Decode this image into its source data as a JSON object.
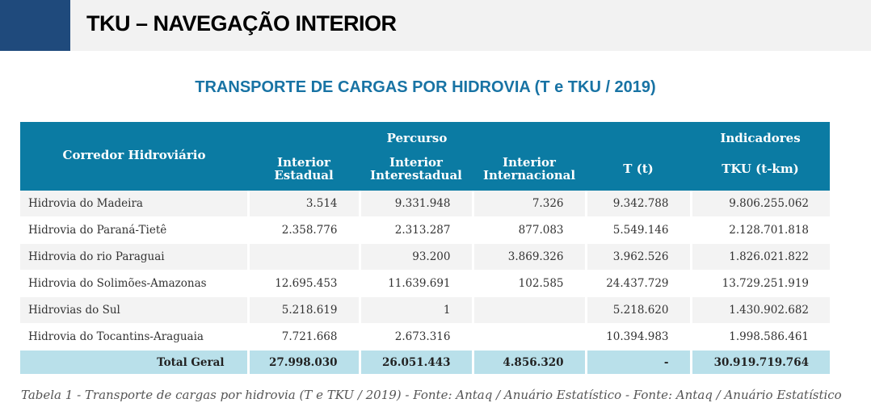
{
  "header": {
    "title": "TKU – NAVEGAÇÃO INTERIOR"
  },
  "table_title": "TRANSPORTE DE CARGAS POR HIDROVIA (T e TKU / 2019)",
  "table": {
    "group_headers": {
      "corredor": "Corredor Hidroviário",
      "percurso": "Percurso",
      "indicadores": "Indicadores"
    },
    "columns": [
      "Interior Estadual",
      "Interior Interestadual",
      "Interior Internacional",
      "T (t)",
      "TKU (t-km)"
    ],
    "rows": [
      [
        "Hidrovia do Madeira",
        "3.514",
        "9.331.948",
        "7.326",
        "9.342.788",
        "9.806.255.062"
      ],
      [
        "Hidrovia do Paraná-Tietê",
        "2.358.776",
        "2.313.287",
        "877.083",
        "5.549.146",
        "2.128.701.818"
      ],
      [
        "Hidrovia do rio Paraguai",
        "",
        "93.200",
        "3.869.326",
        "3.962.526",
        "1.826.021.822"
      ],
      [
        "Hidrovia do Solimões-Amazonas",
        "12.695.453",
        "11.639.691",
        "102.585",
        "24.437.729",
        "13.729.251.919"
      ],
      [
        "Hidrovias do Sul",
        "5.218.619",
        "1",
        "",
        "5.218.620",
        "1.430.902.682"
      ],
      [
        "Hidrovia do Tocantins-Araguaia",
        "7.721.668",
        "2.673.316",
        "",
        "10.394.983",
        "1.998.586.461"
      ]
    ],
    "total": [
      "Total Geral",
      "27.998.030",
      "26.051.443",
      "4.856.320",
      "-",
      "30.919.719.764"
    ]
  },
  "caption": "Tabela 1 - Transporte de cargas por hidrovia (T e TKU / 2019) - Fonte: Antaq / Anuário Estatístico - Fonte: Antaq / Anuário Estatístico"
}
